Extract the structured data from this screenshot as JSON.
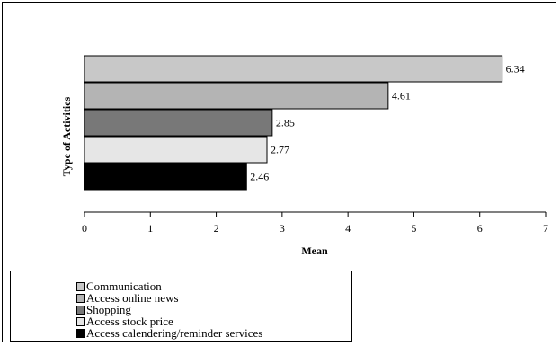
{
  "chart_data": {
    "type": "bar",
    "orientation": "horizontal",
    "title": "",
    "xlabel": "Mean",
    "ylabel": "Type of Activities",
    "xlim": [
      0,
      7
    ],
    "x_ticks": [
      "0",
      "1",
      "2",
      "3",
      "4",
      "5",
      "6",
      "7"
    ],
    "grid": false,
    "legend_position": "bottom-left",
    "categories": [
      "Communication",
      "Access online news",
      "Shopping",
      "Access stock price",
      "Access calendering/reminder services"
    ],
    "values": [
      6.34,
      4.61,
      2.85,
      2.77,
      2.46
    ],
    "value_labels": [
      "6.34",
      "4.61",
      "2.85",
      "2.77",
      "2.46"
    ],
    "colors": [
      "#c8c8c8",
      "#b4b4b4",
      "#787878",
      "#e6e6e6",
      "#000000"
    ]
  }
}
